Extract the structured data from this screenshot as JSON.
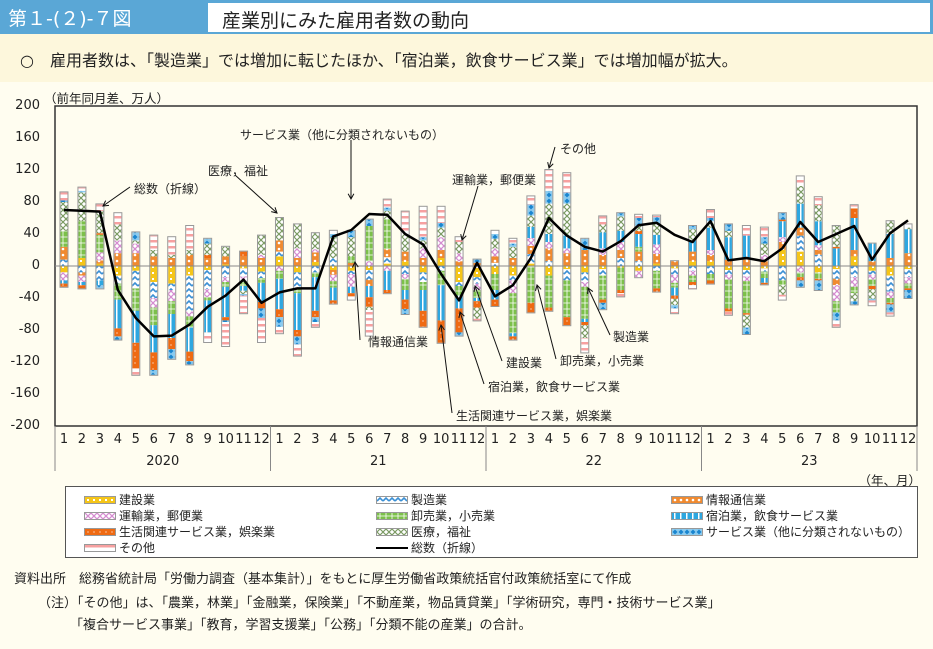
{
  "header": {
    "figure_number": "第１-(２)-７図",
    "title": "産業別にみた雇用者数の動向"
  },
  "summary": "○　雇用者数は、「製造業」では増加に転じたほか、「宿泊業，飲食サービス業」では増加幅が拡大。",
  "footnotes": {
    "source": "資料出所　総務省統計局「労働力調査（基本集計）」をもとに厚生労働省政策統括官付政策統括室にて作成",
    "note1": "（注）「その他」は、「農業，林業」「金融業，保険業」「不動産業，物品賃貸業」「学術研究，専門・技術サービス業」",
    "note2": "「複合サービス事業」「教育，学習支援業」「公務」「分類不能の産業」の合計。"
  },
  "chart_data": {
    "type": "bar",
    "stacked": true,
    "title": "産業別にみた雇用者数の動向",
    "ylabel": "（前年同月差、万人）",
    "xlabel": "（年、月）",
    "ylim": [
      -200,
      200
    ],
    "yticks": [
      200,
      160,
      120,
      80,
      40,
      0,
      -40,
      -80,
      -120,
      -160,
      -200
    ],
    "grid": false,
    "legend_position": "bottom",
    "years": [
      "2020",
      "21",
      "22",
      "23"
    ],
    "months": [
      "1",
      "2",
      "3",
      "4",
      "5",
      "6",
      "7",
      "8",
      "9",
      "10",
      "11",
      "12"
    ],
    "categories": [
      "2020-1",
      "2020-2",
      "2020-3",
      "2020-4",
      "2020-5",
      "2020-6",
      "2020-7",
      "2020-8",
      "2020-9",
      "2020-10",
      "2020-11",
      "2020-12",
      "2021-1",
      "2021-2",
      "2021-3",
      "2021-4",
      "2021-5",
      "2021-6",
      "2021-7",
      "2021-8",
      "2021-9",
      "2021-10",
      "2021-11",
      "2021-12",
      "2022-1",
      "2022-2",
      "2022-3",
      "2022-4",
      "2022-5",
      "2022-6",
      "2022-7",
      "2022-8",
      "2022-9",
      "2022-10",
      "2022-11",
      "2022-12",
      "2023-1",
      "2023-2",
      "2023-3",
      "2023-4",
      "2023-5",
      "2023-6",
      "2023-7",
      "2023-8",
      "2023-9",
      "2023-10",
      "2023-11",
      "2023-12"
    ],
    "series": [
      {
        "name": "建設業",
        "key": "construction",
        "color": "#f5c518",
        "values": [
          -8,
          10,
          3,
          -12,
          -6,
          -20,
          -22,
          -12,
          -5,
          2,
          -3,
          -7,
          12,
          -8,
          5,
          -5,
          -6,
          -5,
          3,
          6,
          -8,
          10,
          -20,
          -14,
          -10,
          -12,
          3,
          -12,
          -4,
          -8,
          -4,
          -2,
          -6,
          3,
          -3,
          6,
          6,
          -5,
          -5,
          -3,
          20,
          18,
          -8,
          -4,
          12,
          -6,
          -12,
          -4
        ]
      },
      {
        "name": "製造業",
        "key": "manufacturing",
        "color": "#3a8fd4",
        "values": [
          8,
          -8,
          -18,
          -10,
          -22,
          -20,
          -8,
          -45,
          -24,
          -14,
          -10,
          -8,
          6,
          -20,
          -8,
          10,
          -4,
          -12,
          8,
          -10,
          -12,
          -6,
          -5,
          -8,
          4,
          -6,
          12,
          6,
          -14,
          -12,
          -8,
          10,
          6,
          -6,
          -8,
          -6,
          -10,
          -6,
          -8,
          -4,
          -18,
          20,
          14,
          -12,
          -14,
          -5,
          -20,
          -10
        ]
      },
      {
        "name": "情報通信業",
        "key": "information",
        "color": "#f08a30",
        "values": [
          16,
          -4,
          4,
          16,
          16,
          12,
          10,
          14,
          10,
          10,
          12,
          10,
          14,
          10,
          12,
          -6,
          4,
          -8,
          10,
          12,
          10,
          10,
          6,
          4,
          8,
          10,
          10,
          16,
          16,
          20,
          14,
          10,
          12,
          12,
          6,
          12,
          8,
          8,
          8,
          6,
          10,
          10,
          6,
          -8,
          8,
          6,
          10,
          16
        ]
      },
      {
        "name": "運輸業，郵便業",
        "key": "transport",
        "color": "#d58cd0",
        "values": [
          -10,
          -8,
          10,
          16,
          12,
          -12,
          -14,
          -6,
          -10,
          -6,
          -6,
          4,
          -6,
          12,
          4,
          -8,
          -16,
          6,
          -6,
          -6,
          12,
          16,
          10,
          -8,
          10,
          -16,
          10,
          8,
          6,
          -6,
          8,
          10,
          -8,
          12,
          -10,
          -6,
          6,
          -6,
          -6,
          8,
          6,
          -8,
          6,
          -20,
          -12,
          -6,
          -8,
          -8
        ]
      },
      {
        "name": "卸売業，小売業",
        "key": "wholesale_retail",
        "color": "#7cc04a",
        "values": [
          20,
          46,
          22,
          -20,
          -28,
          -22,
          -16,
          -14,
          -4,
          -6,
          -6,
          -6,
          -10,
          -6,
          -6,
          -8,
          8,
          44,
          38,
          -14,
          -10,
          -18,
          -12,
          -10,
          -20,
          -50,
          -46,
          -40,
          -46,
          -40,
          -30,
          -28,
          6,
          -22,
          -6,
          -8,
          -8,
          -36,
          -40,
          -8,
          -6,
          -6,
          -8,
          -14,
          -8,
          -8,
          -6,
          -6
        ]
      },
      {
        "name": "宿泊業，飲食サービス業",
        "key": "accommodation_food",
        "color": "#2ea7e0",
        "values": [
          -4,
          -4,
          -6,
          -36,
          -40,
          -34,
          -30,
          -30,
          -40,
          -38,
          -6,
          -24,
          -38,
          -46,
          -42,
          -16,
          -8,
          -14,
          -24,
          -12,
          -26,
          -44,
          -16,
          -4,
          -12,
          -4,
          14,
          10,
          16,
          -4,
          20,
          14,
          16,
          12,
          -10,
          14,
          28,
          28,
          30,
          -6,
          20,
          30,
          30,
          22,
          40,
          22,
          30,
          30
        ]
      },
      {
        "name": "生活関連サービス業，娯楽業",
        "key": "living_services",
        "color": "#ef6a12",
        "values": [
          -4,
          -4,
          2,
          -10,
          -32,
          -22,
          -14,
          -12,
          4,
          -4,
          6,
          -8,
          -10,
          -8,
          -8,
          -4,
          -4,
          -12,
          -4,
          -12,
          -20,
          -28,
          -30,
          -8,
          -8,
          -4,
          -12,
          -4,
          -10,
          -4,
          -4,
          -4,
          4,
          -4,
          -4,
          -4,
          -4,
          -4,
          -2,
          -2,
          2,
          -4,
          -2,
          2,
          12,
          -4,
          -2,
          -2
        ]
      },
      {
        "name": "医療，福祉",
        "key": "medical_welfare",
        "color": "#a0b68a",
        "values": [
          36,
          36,
          28,
          20,
          4,
          8,
          4,
          6,
          14,
          12,
          -4,
          24,
          28,
          30,
          20,
          26,
          24,
          -4,
          10,
          22,
          10,
          12,
          14,
          -14,
          12,
          14,
          14,
          38,
          40,
          -16,
          10,
          18,
          6,
          14,
          -8,
          14,
          8,
          8,
          -16,
          14,
          -12,
          22,
          20,
          26,
          -10,
          -12,
          16,
          2
        ]
      },
      {
        "name": "サービス業（他に分類されないもの）",
        "key": "other_services",
        "color": "#8bcbef",
        "values": [
          2,
          2,
          -4,
          -4,
          10,
          -6,
          -12,
          -4,
          6,
          -2,
          -2,
          -12,
          -12,
          -10,
          -6,
          4,
          8,
          8,
          4,
          -6,
          4,
          6,
          -4,
          4,
          6,
          4,
          14,
          16,
          14,
          14,
          -8,
          4,
          10,
          8,
          -4,
          4,
          4,
          8,
          -8,
          8,
          8,
          -8,
          -12,
          -10,
          -4,
          -2,
          -10,
          -10
        ]
      },
      {
        "name": "その他",
        "key": "others",
        "color": "#f7a0a0",
        "values": [
          10,
          4,
          8,
          14,
          -8,
          18,
          22,
          30,
          -12,
          -30,
          -22,
          -30,
          -8,
          -14,
          -6,
          4,
          -4,
          -32,
          10,
          28,
          38,
          20,
          6,
          -2,
          4,
          6,
          10,
          26,
          24,
          -18,
          10,
          -4,
          4,
          2,
          -6,
          -4,
          10,
          -4,
          12,
          12,
          -6,
          12,
          10,
          -8,
          4,
          -6,
          -4,
          4
        ]
      }
    ],
    "total": {
      "name": "総数（折線）",
      "type": "line",
      "color": "#000000",
      "values": [
        70,
        69,
        68,
        -30,
        -65,
        -88,
        -87,
        -73,
        -51,
        -37,
        -17,
        -46,
        -33,
        -28,
        -28,
        37,
        45,
        65,
        64,
        40,
        27,
        -10,
        -43,
        4,
        -38,
        -24,
        10,
        60,
        38,
        24,
        18,
        31,
        51,
        54,
        39,
        30,
        56,
        7,
        10,
        6,
        22,
        55,
        30,
        40,
        50,
        8,
        41,
        57
      ]
    },
    "annotations": [
      {
        "text": "総数（折線）",
        "target": "2020-3",
        "series": "total"
      },
      {
        "text": "医療，福祉",
        "target": "2020-12",
        "series": "medical_welfare"
      },
      {
        "text": "サービス業（他に分類されないもの）",
        "target": "2021-5",
        "series": "other_services"
      },
      {
        "text": "情報通信業",
        "target": "2021-5",
        "series": "information"
      },
      {
        "text": "運輸業，郵便業",
        "target": "2021-11",
        "series": "transport"
      },
      {
        "text": "生活関連サービス業，娯楽業",
        "target": "2021-10",
        "series": "living_services"
      },
      {
        "text": "宿泊業，飲食サービス業",
        "target": "2021-11",
        "series": "accommodation_food"
      },
      {
        "text": "建設業",
        "target": "2021-12",
        "series": "construction"
      },
      {
        "text": "卸売業，小売業",
        "target": "2022-4",
        "series": "wholesale_retail"
      },
      {
        "text": "製造業",
        "target": "2022-7",
        "series": "manufacturing"
      },
      {
        "text": "その他",
        "target": "2022-4",
        "series": "others"
      }
    ]
  },
  "legend": [
    {
      "label": "建設業",
      "key": "construction"
    },
    {
      "label": "製造業",
      "key": "manufacturing"
    },
    {
      "label": "情報通信業",
      "key": "information"
    },
    {
      "label": "運輸業，郵便業",
      "key": "transport"
    },
    {
      "label": "卸売業，小売業",
      "key": "wholesale_retail"
    },
    {
      "label": "宿泊業，飲食サービス業",
      "key": "accommodation_food"
    },
    {
      "label": "生活関連サービス業，娯楽業",
      "key": "living_services"
    },
    {
      "label": "医療，福祉",
      "key": "medical_welfare"
    },
    {
      "label": "サービス業（他に分類されないもの）",
      "key": "other_services"
    },
    {
      "label": "その他",
      "key": "others"
    },
    {
      "label": "総数（折線）",
      "key": "total"
    }
  ]
}
